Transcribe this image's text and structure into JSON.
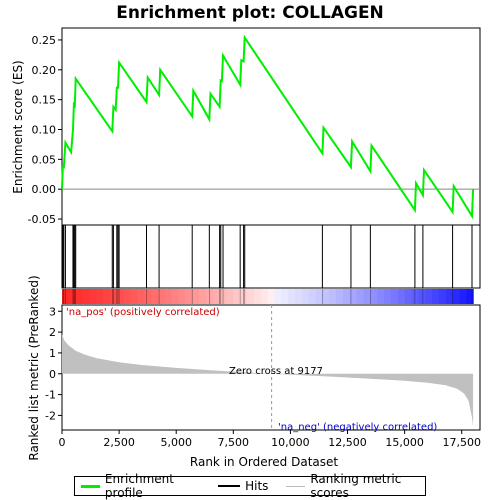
{
  "chart_data": {
    "type": "line",
    "title": "Enrichment plot: COLLAGEN",
    "top_panel": {
      "ylabel": "Enrichment score (ES)",
      "ylim": [
        -0.06,
        0.27
      ],
      "yticks": [
        "0.25",
        "0.20",
        "0.15",
        "0.10",
        "0.05",
        "0.00",
        "-0.05"
      ],
      "ytick_values": [
        0.25,
        0.2,
        0.15,
        0.1,
        0.05,
        0.0,
        -0.05
      ],
      "series": [
        {
          "color": "#00ee00",
          "points": [
            [
              0,
              0.0
            ],
            [
              40,
              0.04
            ],
            [
              80,
              0.035
            ],
            [
              150,
              0.078
            ],
            [
              400,
              0.062
            ],
            [
              480,
              0.1
            ],
            [
              520,
              0.142
            ],
            [
              560,
              0.14
            ],
            [
              600,
              0.185
            ],
            [
              2200,
              0.097
            ],
            [
              2250,
              0.138
            ],
            [
              2350,
              0.133
            ],
            [
              2400,
              0.17
            ],
            [
              2450,
              0.17
            ],
            [
              2500,
              0.212
            ],
            [
              3700,
              0.146
            ],
            [
              3750,
              0.187
            ],
            [
              4250,
              0.158
            ],
            [
              4300,
              0.2
            ],
            [
              5700,
              0.122
            ],
            [
              5750,
              0.165
            ],
            [
              6450,
              0.117
            ],
            [
              6500,
              0.16
            ],
            [
              6900,
              0.138
            ],
            [
              6950,
              0.182
            ],
            [
              7000,
              0.181
            ],
            [
              7050,
              0.224
            ],
            [
              7800,
              0.175
            ],
            [
              7850,
              0.216
            ],
            [
              7950,
              0.214
            ],
            [
              8000,
              0.254
            ],
            [
              11400,
              0.06
            ],
            [
              11450,
              0.103
            ],
            [
              12650,
              0.037
            ],
            [
              12700,
              0.08
            ],
            [
              13500,
              0.03
            ],
            [
              13550,
              0.073
            ],
            [
              15450,
              -0.035
            ],
            [
              15500,
              0.01
            ],
            [
              15800,
              -0.01
            ],
            [
              15850,
              0.032
            ],
            [
              17100,
              -0.038
            ],
            [
              17150,
              0.005
            ],
            [
              17950,
              -0.045
            ],
            [
              18000,
              0.0
            ]
          ]
        }
      ]
    },
    "hits": [
      40,
      80,
      150,
      480,
      520,
      560,
      600,
      2200,
      2250,
      2400,
      2450,
      2500,
      3700,
      4250,
      5700,
      6450,
      6900,
      6950,
      7050,
      7800,
      7950,
      8000,
      11400,
      12650,
      13500,
      15450,
      15800,
      17100,
      17950
    ],
    "bottom_panel": {
      "ylabel": "Ranked list metric (PreRanked)",
      "xlabel": "Rank in Ordered Dataset",
      "ylim": [
        -2.7,
        3.3
      ],
      "yticks": [
        "3",
        "2",
        "1",
        "0",
        "-1",
        "-2"
      ],
      "ytick_values": [
        3,
        2,
        1,
        0,
        -1,
        -2
      ],
      "xticks": [
        "0",
        "2,500",
        "5,000",
        "7,500",
        "10,000",
        "12,500",
        "15,000",
        "17,500"
      ],
      "xtick_values": [
        0,
        2500,
        5000,
        7500,
        10000,
        12500,
        15000,
        17500
      ],
      "xlim": [
        0,
        18300
      ],
      "n_genes": 18000,
      "zero_cross": 9177,
      "zero_cross_label": "Zero cross at 9177",
      "pos_label": "'na_pos' (positively correlated)",
      "neg_label": "'na_neg' (negatively correlated)",
      "metric_curve": [
        [
          0,
          1.9
        ],
        [
          100,
          1.6
        ],
        [
          300,
          1.35
        ],
        [
          600,
          1.1
        ],
        [
          1000,
          0.92
        ],
        [
          1500,
          0.75
        ],
        [
          2500,
          0.55
        ],
        [
          3500,
          0.42
        ],
        [
          5000,
          0.28
        ],
        [
          6500,
          0.17
        ],
        [
          8000,
          0.07
        ],
        [
          9177,
          0.0
        ],
        [
          10500,
          -0.07
        ],
        [
          12000,
          -0.15
        ],
        [
          13500,
          -0.24
        ],
        [
          15000,
          -0.34
        ],
        [
          16000,
          -0.43
        ],
        [
          16800,
          -0.55
        ],
        [
          17300,
          -0.72
        ],
        [
          17600,
          -0.95
        ],
        [
          17800,
          -1.3
        ],
        [
          17950,
          -2.1
        ],
        [
          18000,
          -2.55
        ]
      ]
    },
    "legend": {
      "items": [
        "Enrichment profile",
        "Hits",
        "Ranking metric scores"
      ]
    }
  }
}
